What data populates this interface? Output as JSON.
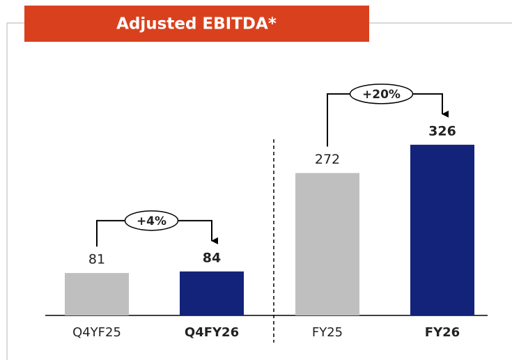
{
  "chart_data": {
    "type": "bar",
    "title": "Adjusted EBITDA*",
    "categories": [
      "Q4YF25",
      "Q4FY26",
      "FY25",
      "FY26"
    ],
    "values": [
      81,
      84,
      272,
      326
    ],
    "colors": [
      "#bfbfbf",
      "#13237a",
      "#bfbfbf",
      "#13237a"
    ],
    "annotations": [
      "+4%",
      "+20%"
    ]
  }
}
